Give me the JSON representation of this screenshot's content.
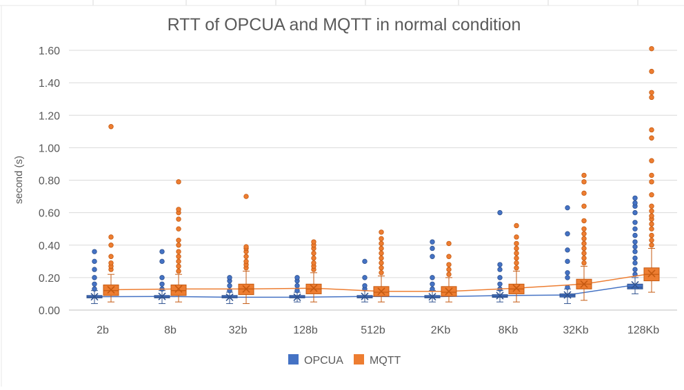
{
  "colors": {
    "opcua": "#4472C4",
    "mqtt": "#ED7D31",
    "opcua_dark": "#2F528F",
    "mqtt_dark": "#C55A11",
    "grid": "#D9D9D9",
    "text": "#595959"
  },
  "chart_data": {
    "type": "box",
    "title": "RTT of OPCUA and MQTT in normal condition",
    "xlabel": "",
    "ylabel": "second (s)",
    "ylim": [
      0,
      1.6
    ],
    "yticks": [
      "0.00",
      "0.20",
      "0.40",
      "0.60",
      "0.80",
      "1.00",
      "1.20",
      "1.40",
      "1.60"
    ],
    "categories": [
      "2b",
      "8b",
      "32b",
      "128b",
      "512b",
      "2Kb",
      "8Kb",
      "32Kb",
      "128Kb"
    ],
    "grid": true,
    "legend_position": "bottom",
    "series": [
      {
        "name": "OPCUA",
        "color": "#4472C4",
        "boxes": [
          {
            "min": 0.04,
            "q1": 0.075,
            "median": 0.08,
            "q3": 0.09,
            "max": 0.12,
            "mean": 0.082,
            "outliers": [
              0.13,
              0.16,
              0.2,
              0.25,
              0.3,
              0.36
            ]
          },
          {
            "min": 0.04,
            "q1": 0.075,
            "median": 0.08,
            "q3": 0.09,
            "max": 0.12,
            "mean": 0.084,
            "outliers": [
              0.13,
              0.16,
              0.2,
              0.3,
              0.36
            ]
          },
          {
            "min": 0.04,
            "q1": 0.075,
            "median": 0.08,
            "q3": 0.09,
            "max": 0.11,
            "mean": 0.079,
            "outliers": [
              0.12,
              0.15,
              0.18,
              0.2
            ]
          },
          {
            "min": 0.05,
            "q1": 0.075,
            "median": 0.08,
            "q3": 0.09,
            "max": 0.11,
            "mean": 0.079,
            "outliers": [
              0.12,
              0.15,
              0.18,
              0.2
            ]
          },
          {
            "min": 0.05,
            "q1": 0.075,
            "median": 0.08,
            "q3": 0.09,
            "max": 0.12,
            "mean": 0.084,
            "outliers": [
              0.13,
              0.15,
              0.2,
              0.3
            ]
          },
          {
            "min": 0.05,
            "q1": 0.075,
            "median": 0.08,
            "q3": 0.09,
            "max": 0.12,
            "mean": 0.082,
            "outliers": [
              0.13,
              0.16,
              0.2,
              0.33,
              0.38,
              0.42
            ]
          },
          {
            "min": 0.05,
            "q1": 0.078,
            "median": 0.085,
            "q3": 0.095,
            "max": 0.12,
            "mean": 0.089,
            "outliers": [
              0.13,
              0.16,
              0.2,
              0.25,
              0.28,
              0.6
            ]
          },
          {
            "min": 0.04,
            "q1": 0.08,
            "median": 0.09,
            "q3": 0.1,
            "max": 0.13,
            "mean": 0.093,
            "outliers": [
              0.14,
              0.2,
              0.23,
              0.3,
              0.37,
              0.47,
              0.63
            ]
          },
          {
            "min": 0.1,
            "q1": 0.13,
            "median": 0.14,
            "q3": 0.16,
            "max": 0.2,
            "mean": 0.155,
            "outliers": [
              0.22,
              0.25,
              0.29,
              0.32,
              0.36,
              0.39,
              0.42,
              0.46,
              0.5,
              0.54,
              0.6,
              0.64,
              0.66,
              0.69
            ]
          }
        ]
      },
      {
        "name": "MQTT",
        "color": "#ED7D31",
        "boxes": [
          {
            "min": 0.05,
            "q1": 0.09,
            "median": 0.12,
            "q3": 0.155,
            "max": 0.22,
            "mean": 0.125,
            "outliers": [
              0.25,
              0.27,
              0.29,
              0.33,
              0.4,
              0.45,
              1.13
            ]
          },
          {
            "min": 0.05,
            "q1": 0.09,
            "median": 0.12,
            "q3": 0.155,
            "max": 0.22,
            "mean": 0.13,
            "outliers": [
              0.24,
              0.27,
              0.3,
              0.33,
              0.36,
              0.4,
              0.43,
              0.5,
              0.56,
              0.6,
              0.62,
              0.79
            ]
          },
          {
            "min": 0.04,
            "q1": 0.095,
            "median": 0.13,
            "q3": 0.16,
            "max": 0.24,
            "mean": 0.13,
            "outliers": [
              0.26,
              0.28,
              0.3,
              0.33,
              0.36,
              0.38,
              0.39,
              0.7
            ]
          },
          {
            "min": 0.05,
            "q1": 0.1,
            "median": 0.13,
            "q3": 0.16,
            "max": 0.23,
            "mean": 0.135,
            "outliers": [
              0.25,
              0.27,
              0.29,
              0.32,
              0.35,
              0.38,
              0.4,
              0.42
            ]
          },
          {
            "min": 0.05,
            "q1": 0.085,
            "median": 0.11,
            "q3": 0.145,
            "max": 0.21,
            "mean": 0.115,
            "outliers": [
              0.23,
              0.26,
              0.29,
              0.32,
              0.35,
              0.38,
              0.41,
              0.44,
              0.48
            ]
          },
          {
            "min": 0.05,
            "q1": 0.085,
            "median": 0.11,
            "q3": 0.145,
            "max": 0.2,
            "mean": 0.115,
            "outliers": [
              0.22,
              0.25,
              0.28,
              0.33,
              0.41
            ]
          },
          {
            "min": 0.05,
            "q1": 0.1,
            "median": 0.13,
            "q3": 0.16,
            "max": 0.24,
            "mean": 0.135,
            "outliers": [
              0.26,
              0.29,
              0.32,
              0.35,
              0.38,
              0.41,
              0.45,
              0.52
            ]
          },
          {
            "min": 0.06,
            "q1": 0.13,
            "median": 0.16,
            "q3": 0.19,
            "max": 0.27,
            "mean": 0.16,
            "outliers": [
              0.29,
              0.32,
              0.35,
              0.38,
              0.41,
              0.44,
              0.47,
              0.5,
              0.55,
              0.64,
              0.72,
              0.79,
              0.83
            ]
          },
          {
            "min": 0.11,
            "q1": 0.18,
            "median": 0.22,
            "q3": 0.26,
            "max": 0.38,
            "mean": 0.225,
            "outliers": [
              0.4,
              0.43,
              0.46,
              0.5,
              0.53,
              0.56,
              0.58,
              0.61,
              0.64,
              0.71,
              0.79,
              0.83,
              0.92,
              1.06,
              1.11,
              1.31,
              1.34,
              1.47,
              1.61
            ]
          }
        ]
      }
    ]
  }
}
